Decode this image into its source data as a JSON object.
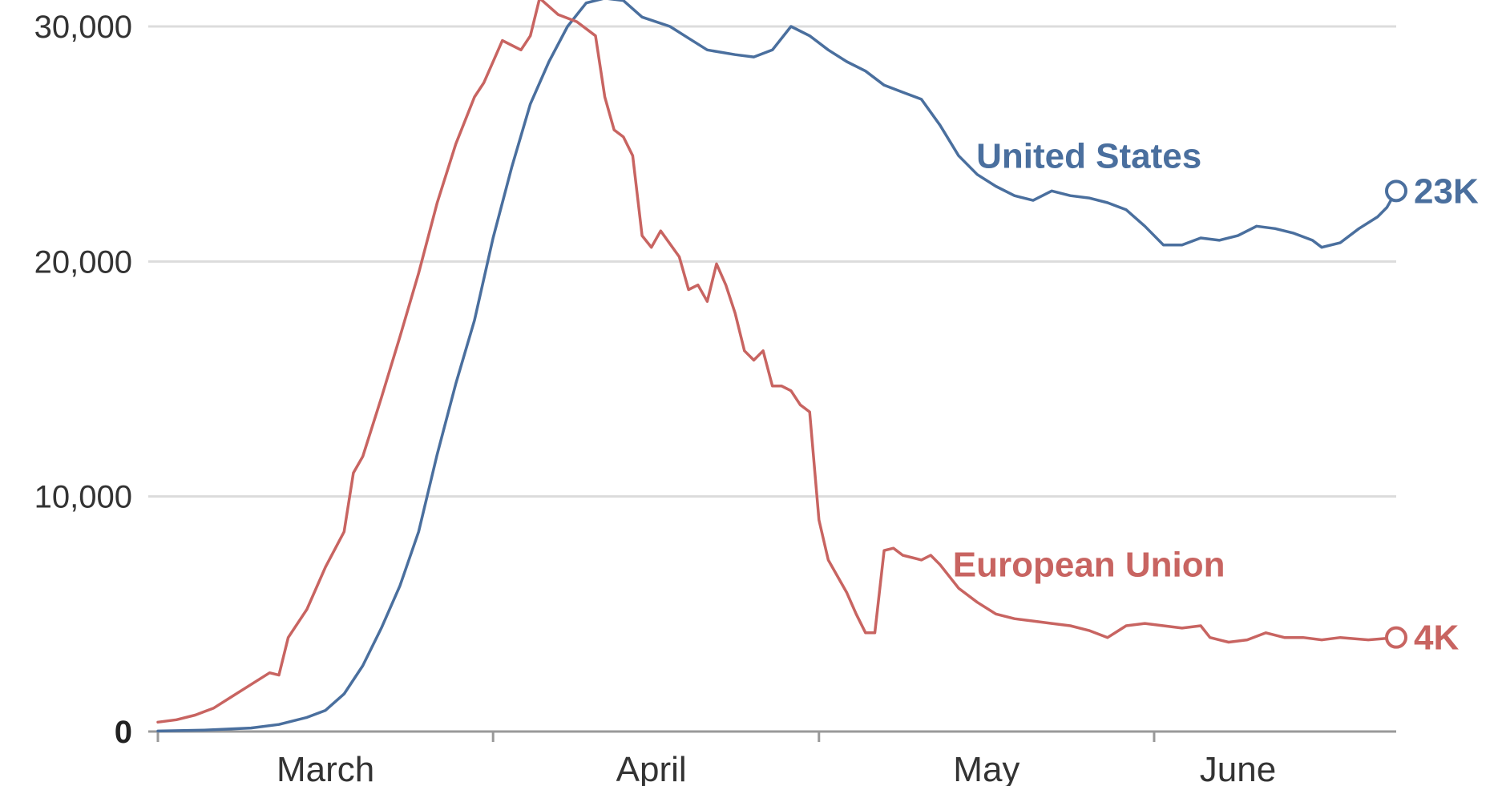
{
  "chart_data": {
    "type": "line",
    "ylim": [
      0,
      30000
    ],
    "x_domain_days": [
      0,
      125
    ],
    "grid": true,
    "y_ticks": [
      {
        "value": 0,
        "label": "0"
      },
      {
        "value": 10000,
        "label": "10,000"
      },
      {
        "value": 20000,
        "label": "20,000"
      },
      {
        "value": 30000,
        "label": "30,000"
      }
    ],
    "x_ticks": [
      {
        "label": "March",
        "tick_day": 0,
        "label_day": 18
      },
      {
        "label": "April",
        "tick_day": 36,
        "label_day": 53
      },
      {
        "label": "May",
        "tick_day": 71,
        "label_day": 89
      },
      {
        "label": "June",
        "tick_day": 107,
        "label_day": 116
      }
    ],
    "series": [
      {
        "name": "United States",
        "end_label": "23K",
        "color": "#4a6f9e",
        "label_day": 100,
        "label_value": 24500,
        "points": [
          [
            0,
            20
          ],
          [
            5,
            60
          ],
          [
            10,
            150
          ],
          [
            13,
            300
          ],
          [
            16,
            600
          ],
          [
            18,
            900
          ],
          [
            20,
            1600
          ],
          [
            22,
            2800
          ],
          [
            24,
            4400
          ],
          [
            26,
            6200
          ],
          [
            28,
            8500
          ],
          [
            30,
            11800
          ],
          [
            32,
            14800
          ],
          [
            34,
            17500
          ],
          [
            36,
            21000
          ],
          [
            38,
            24000
          ],
          [
            40,
            26700
          ],
          [
            42,
            28500
          ],
          [
            44,
            30000
          ],
          [
            46,
            31000
          ],
          [
            48,
            31200
          ],
          [
            50,
            31100
          ],
          [
            52,
            30400
          ],
          [
            55,
            30000
          ],
          [
            57,
            29500
          ],
          [
            59,
            29000
          ],
          [
            62,
            28800
          ],
          [
            64,
            28700
          ],
          [
            66,
            29000
          ],
          [
            68,
            30000
          ],
          [
            70,
            29600
          ],
          [
            72,
            29000
          ],
          [
            74,
            28500
          ],
          [
            76,
            28100
          ],
          [
            78,
            27500
          ],
          [
            80,
            27200
          ],
          [
            82,
            26900
          ],
          [
            84,
            25800
          ],
          [
            86,
            24500
          ],
          [
            88,
            23700
          ],
          [
            90,
            23200
          ],
          [
            92,
            22800
          ],
          [
            94,
            22600
          ],
          [
            96,
            23000
          ],
          [
            98,
            22800
          ],
          [
            100,
            22700
          ],
          [
            102,
            22500
          ],
          [
            104,
            22200
          ],
          [
            106,
            21500
          ],
          [
            108,
            20700
          ],
          [
            110,
            20700
          ],
          [
            112,
            21000
          ],
          [
            114,
            20900
          ],
          [
            116,
            21100
          ],
          [
            118,
            21500
          ],
          [
            120,
            21400
          ],
          [
            122,
            21200
          ],
          [
            124,
            20900
          ],
          [
            125,
            20600
          ],
          [
            127,
            20800
          ],
          [
            129,
            21400
          ],
          [
            131,
            21900
          ],
          [
            132,
            22300
          ],
          [
            133,
            23000
          ]
        ]
      },
      {
        "name": "European Union",
        "end_label": "4K",
        "color": "#c86461",
        "label_day": 100,
        "label_value": 7100,
        "points": [
          [
            0,
            400
          ],
          [
            2,
            500
          ],
          [
            4,
            700
          ],
          [
            6,
            1000
          ],
          [
            8,
            1500
          ],
          [
            10,
            2000
          ],
          [
            12,
            2500
          ],
          [
            13,
            2400
          ],
          [
            14,
            4000
          ],
          [
            16,
            5200
          ],
          [
            18,
            7000
          ],
          [
            20,
            8500
          ],
          [
            21,
            11000
          ],
          [
            22,
            11700
          ],
          [
            24,
            14200
          ],
          [
            26,
            16800
          ],
          [
            28,
            19500
          ],
          [
            30,
            22500
          ],
          [
            32,
            25000
          ],
          [
            34,
            27000
          ],
          [
            35,
            27600
          ],
          [
            37,
            29400
          ],
          [
            39,
            29000
          ],
          [
            40,
            29600
          ],
          [
            41,
            31200
          ],
          [
            43,
            30500
          ],
          [
            45,
            30200
          ],
          [
            47,
            29600
          ],
          [
            48,
            27000
          ],
          [
            49,
            25600
          ],
          [
            50,
            25300
          ],
          [
            51,
            24500
          ],
          [
            52,
            21100
          ],
          [
            53,
            20600
          ],
          [
            54,
            21300
          ],
          [
            56,
            20200
          ],
          [
            57,
            18800
          ],
          [
            58,
            19000
          ],
          [
            59,
            18300
          ],
          [
            60,
            19900
          ],
          [
            61,
            19000
          ],
          [
            62,
            17800
          ],
          [
            63,
            16200
          ],
          [
            64,
            15800
          ],
          [
            65,
            16200
          ],
          [
            66,
            14700
          ],
          [
            67,
            14700
          ],
          [
            68,
            14500
          ],
          [
            69,
            13900
          ],
          [
            70,
            13600
          ],
          [
            71,
            9000
          ],
          [
            72,
            7300
          ],
          [
            73,
            6600
          ],
          [
            74,
            5900
          ],
          [
            75,
            5000
          ],
          [
            76,
            4200
          ],
          [
            77,
            4200
          ],
          [
            78,
            7700
          ],
          [
            79,
            7800
          ],
          [
            80,
            7500
          ],
          [
            82,
            7300
          ],
          [
            83,
            7500
          ],
          [
            84,
            7100
          ],
          [
            86,
            6100
          ],
          [
            88,
            5500
          ],
          [
            90,
            5000
          ],
          [
            92,
            4800
          ],
          [
            94,
            4700
          ],
          [
            96,
            4600
          ],
          [
            98,
            4500
          ],
          [
            100,
            4300
          ],
          [
            102,
            4000
          ],
          [
            104,
            4500
          ],
          [
            106,
            4600
          ],
          [
            108,
            4500
          ],
          [
            110,
            4400
          ],
          [
            112,
            4500
          ],
          [
            113,
            4000
          ],
          [
            115,
            3800
          ],
          [
            117,
            3900
          ],
          [
            119,
            4200
          ],
          [
            121,
            4000
          ],
          [
            123,
            4000
          ],
          [
            125,
            3900
          ],
          [
            127,
            4000
          ],
          [
            130,
            3900
          ],
          [
            133,
            4000
          ]
        ]
      }
    ]
  }
}
